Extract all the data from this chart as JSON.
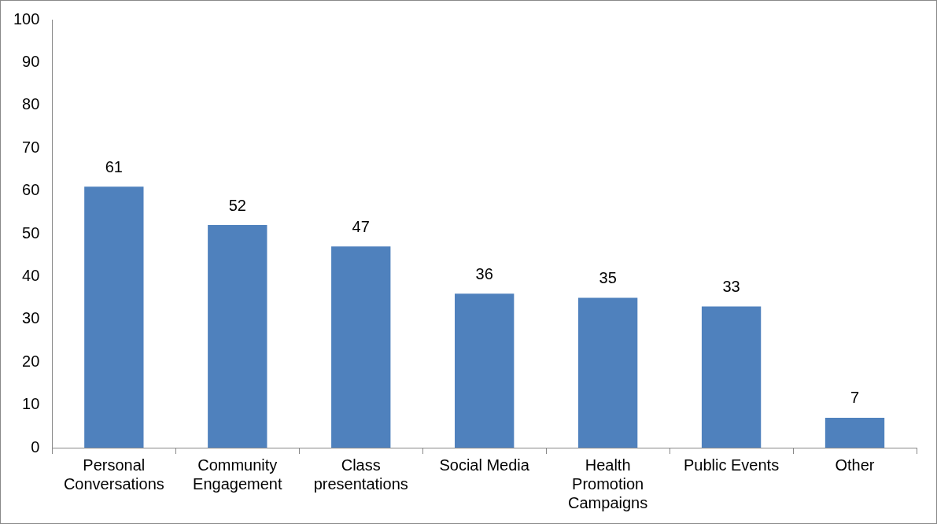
{
  "chart_data": {
    "type": "bar",
    "categories": [
      "Personal Conversations",
      "Community Engagement",
      "Class presentations",
      "Social Media",
      "Health Promotion Campaigns",
      "Public Events",
      "Other"
    ],
    "values": [
      61,
      52,
      47,
      36,
      35,
      33,
      7
    ],
    "color": "#4f81bd",
    "ylim": [
      0,
      100
    ],
    "yticks": [
      0,
      10,
      20,
      30,
      40,
      50,
      60,
      70,
      80,
      90,
      100
    ],
    "data_labels": true,
    "grid": false,
    "legend": false
  }
}
